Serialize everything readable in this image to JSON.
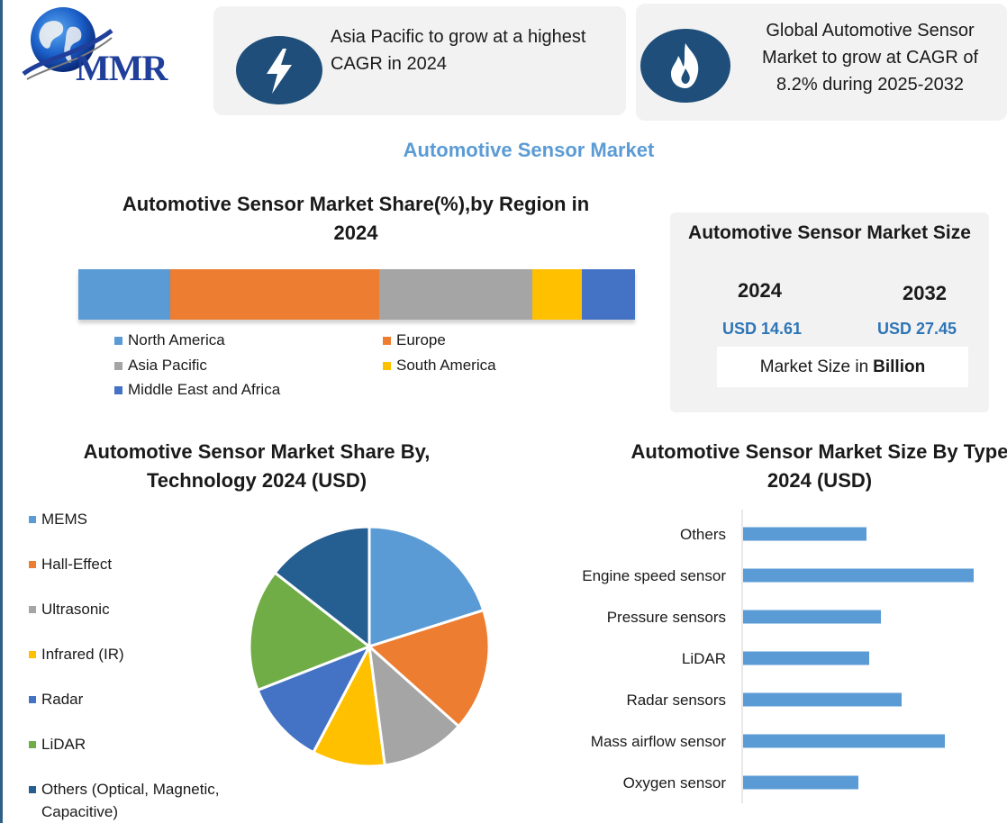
{
  "logo": {
    "text": "MMR"
  },
  "callouts": [
    {
      "icon": "lightning-bolt-icon",
      "text": "Asia Pacific to grow at a highest CAGR in 2024"
    },
    {
      "icon": "flame-icon",
      "text": "Global Automotive Sensor Market to grow at CAGR of 8.2% during 2025-2032"
    }
  ],
  "main_title": "Automotive Sensor Market",
  "market_size": {
    "title": "Automotive Sensor Market Size",
    "year_1": "2024",
    "year_2": "2032",
    "value_1": "USD 14.61",
    "value_2": "USD 27.45",
    "note_prefix": "Market Size in",
    "note_bold": "Billion"
  },
  "colors": {
    "blue": "#5b9bd5",
    "orange": "#ed7d31",
    "gray": "#a5a5a5",
    "yellow": "#ffc000",
    "dark_blue": "#4472c4",
    "green": "#70ad47",
    "navy": "#255e91",
    "icon_bg": "#1e4e79"
  },
  "chart_data": [
    {
      "type": "bar",
      "orientation": "horizontal-stacked",
      "title": "Automotive Sensor Market Share(%),by Region in 2024",
      "categories": [
        "2024"
      ],
      "series": [
        {
          "name": "North America",
          "values": [
            16.5
          ],
          "color": "#5b9bd5"
        },
        {
          "name": "Europe",
          "values": [
            37.5
          ],
          "color": "#ed7d31"
        },
        {
          "name": "Asia Pacific",
          "values": [
            27.5
          ],
          "color": "#a5a5a5"
        },
        {
          "name": "South America",
          "values": [
            9
          ],
          "color": "#ffc000"
        },
        {
          "name": "Middle East and Africa",
          "values": [
            9.5
          ],
          "color": "#4472c4"
        }
      ],
      "legend": "bottom"
    },
    {
      "type": "pie",
      "title": "Automotive Sensor Market  Share By, Technology  2024  (USD)",
      "labels": [
        "MEMS",
        "Hall-Effect",
        "Ultrasonic",
        "Infrared (IR)",
        "Radar",
        "LiDAR",
        "Others (Optical, Magnetic, Capacitive)"
      ],
      "values": [
        19.5,
        16,
        11,
        9.5,
        11,
        16,
        14
      ],
      "colors": [
        "#5b9bd5",
        "#ed7d31",
        "#a5a5a5",
        "#ffc000",
        "#4472c4",
        "#70ad47",
        "#255e91"
      ],
      "legend": "left"
    },
    {
      "type": "bar",
      "orientation": "horizontal",
      "title": "Automotive Sensor Market Size By Type 2024  (USD)",
      "categories": [
        "Others",
        "Engine speed sensor",
        "Pressure sensors",
        "LiDAR",
        "Radar sensors",
        "Mass airflow sensor",
        "Oxygen sensor"
      ],
      "values": [
        1.37,
        2.56,
        1.53,
        1.4,
        1.76,
        2.24,
        1.28
      ],
      "color": "#5b9bd5",
      "xlim": [
        0,
        2.8
      ],
      "grid": false
    }
  ]
}
